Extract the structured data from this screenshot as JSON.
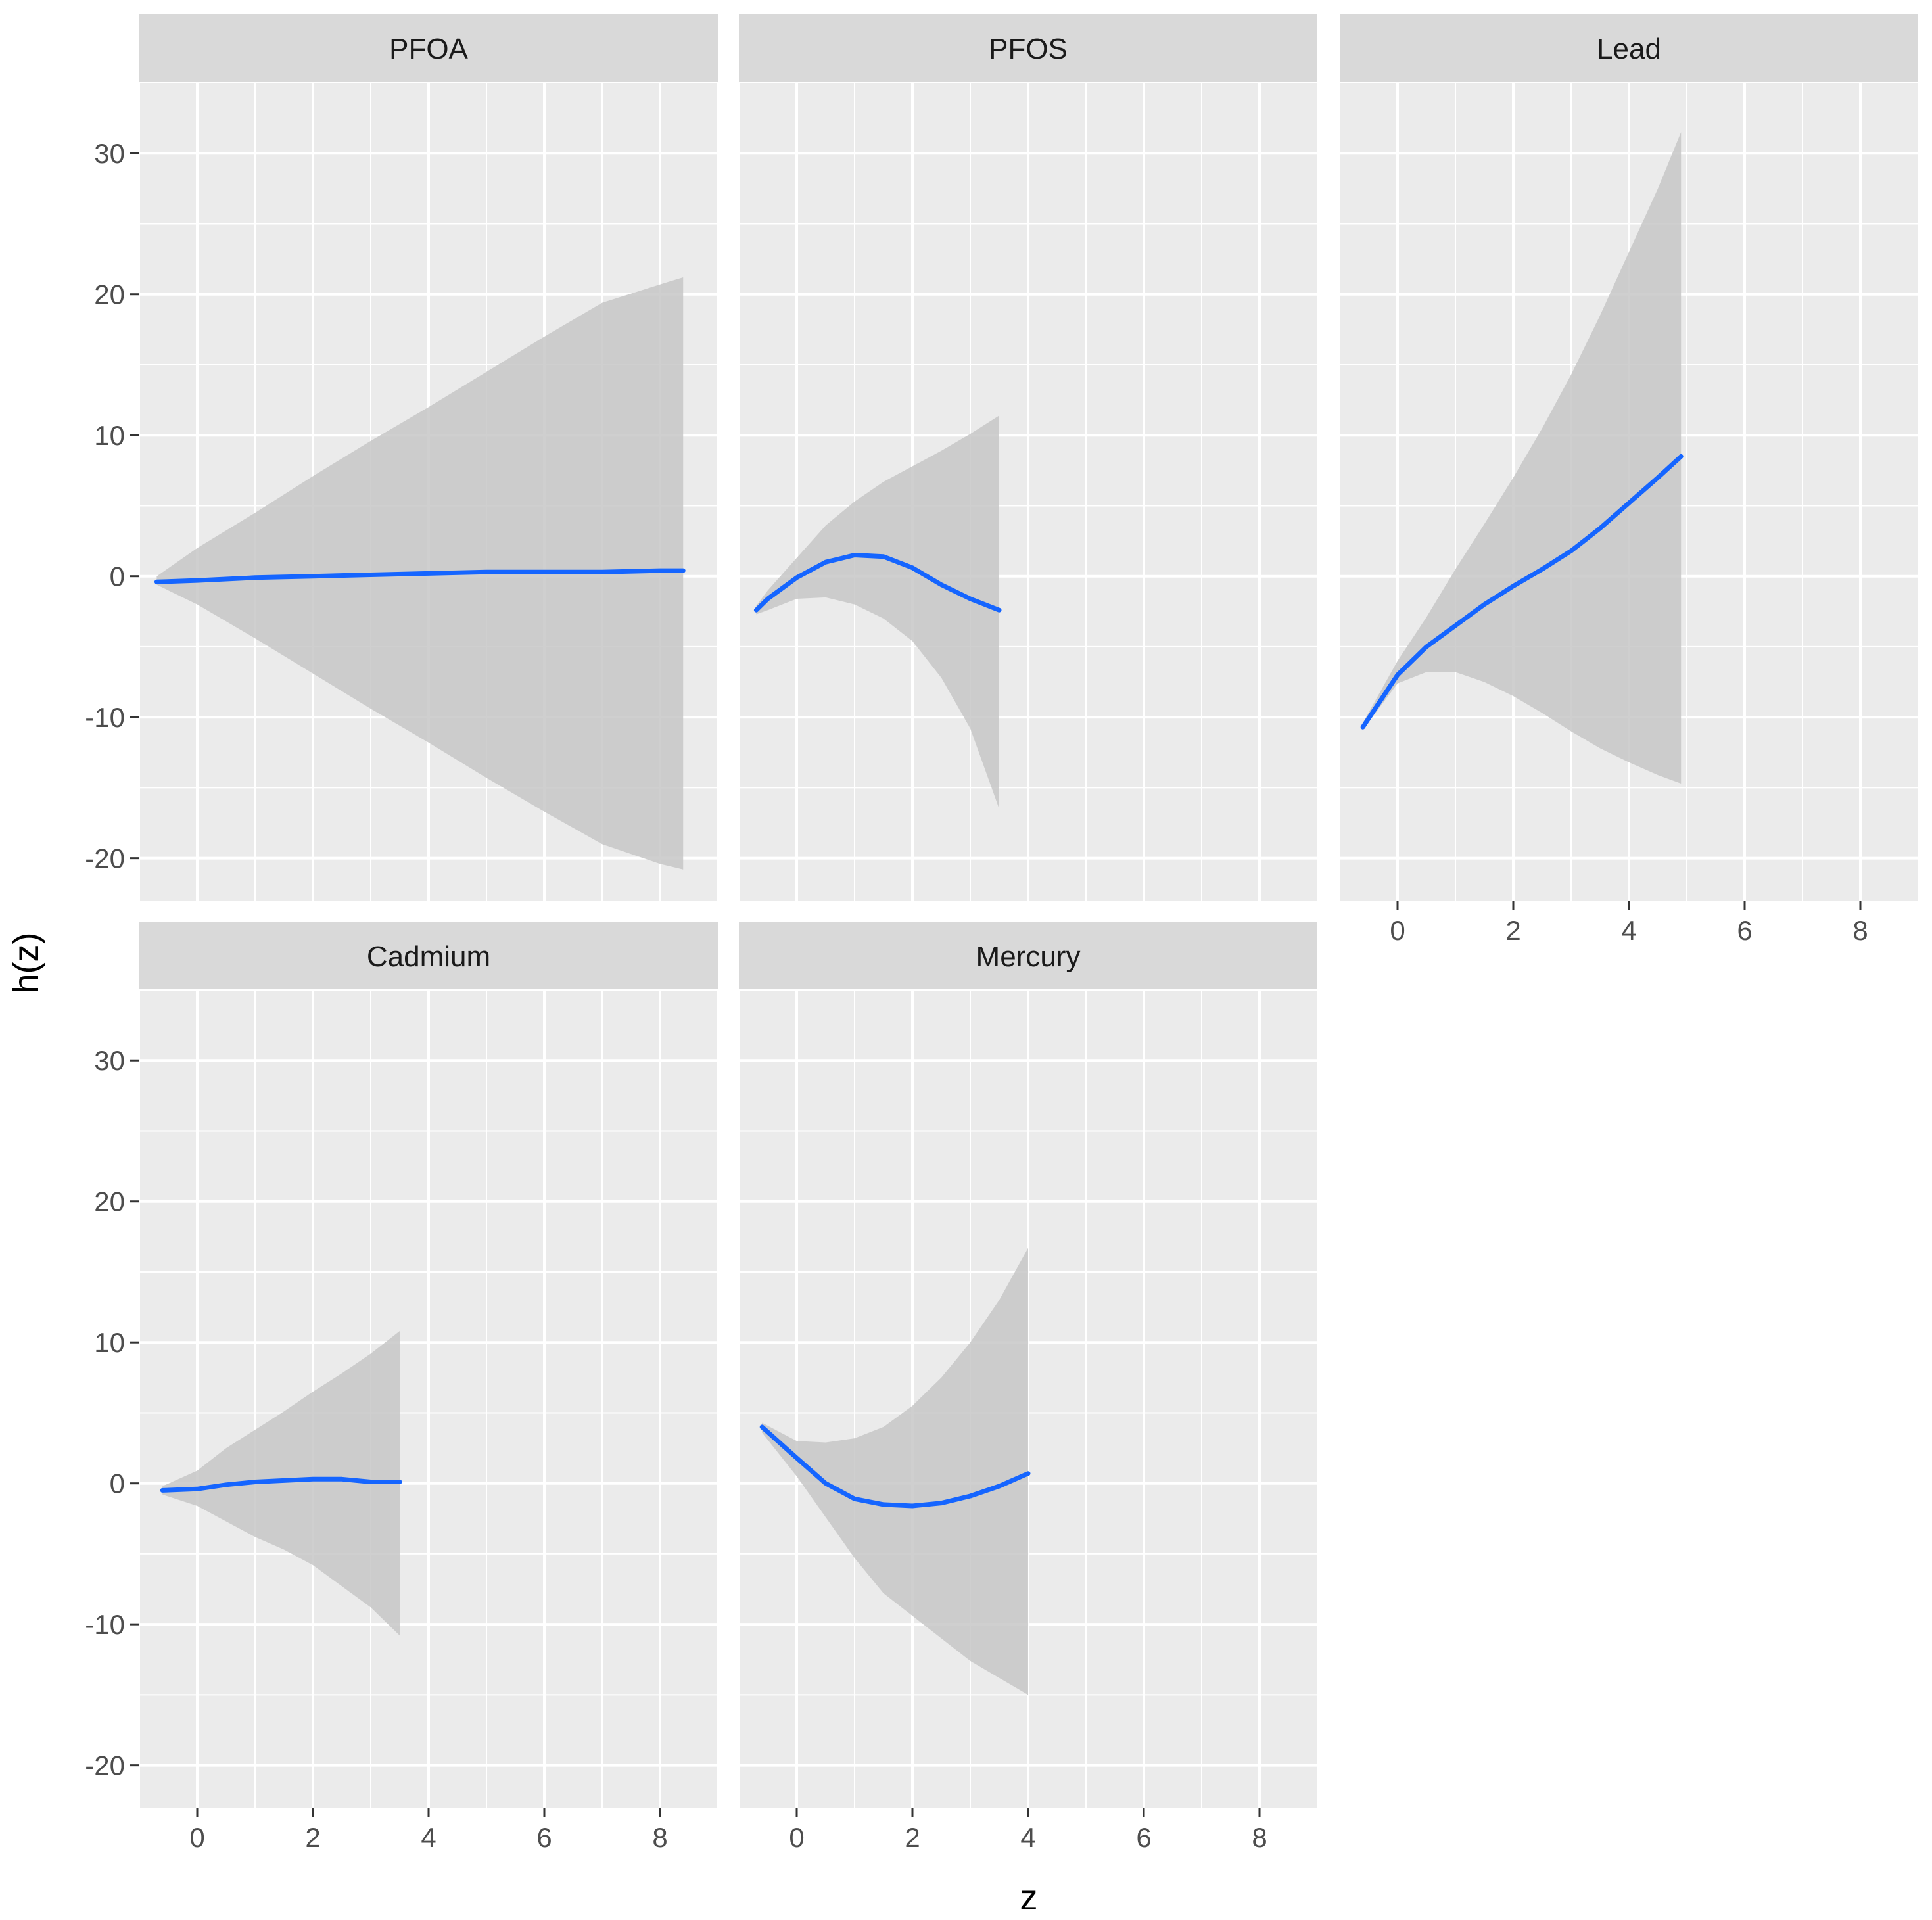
{
  "chart_data": {
    "type": "line",
    "xlabel": "z",
    "ylabel": "h(z)",
    "xlim": [
      -1,
      9
    ],
    "ylim": [
      -23,
      35
    ],
    "x_ticks": [
      0,
      2,
      4,
      6,
      8
    ],
    "y_ticks": [
      -20,
      -10,
      0,
      10,
      20,
      30
    ],
    "grid": true,
    "legend": "none",
    "colors": {
      "line": "#1565FF",
      "band": "#C7C7C7",
      "panel_bg": "#EBEBEB",
      "strip_bg": "#D9D9D9",
      "grid": "#FFFFFF"
    },
    "panels": [
      {
        "name": "PFOA",
        "x": [
          -0.7,
          0,
          1,
          2,
          3,
          4,
          5,
          6,
          7,
          8,
          8.4
        ],
        "y": [
          -0.4,
          -0.3,
          -0.1,
          0.0,
          0.1,
          0.2,
          0.3,
          0.3,
          0.3,
          0.4,
          0.4
        ],
        "lower": [
          -0.6,
          -2.0,
          -4.4,
          -6.9,
          -9.4,
          -11.8,
          -14.3,
          -16.7,
          -19.0,
          -20.4,
          -20.8
        ],
        "upper": [
          0.0,
          2.0,
          4.5,
          7.1,
          9.6,
          12.0,
          14.5,
          17.0,
          19.4,
          20.7,
          21.2
        ]
      },
      {
        "name": "PFOS",
        "x": [
          -0.7,
          -0.5,
          0,
          0.5,
          1,
          1.5,
          2,
          2.5,
          3,
          3.5
        ],
        "y": [
          -2.4,
          -1.6,
          -0.1,
          1.0,
          1.5,
          1.4,
          0.6,
          -0.6,
          -1.6,
          -2.4
        ],
        "lower": [
          -2.7,
          -2.4,
          -1.6,
          -1.5,
          -2.0,
          -3.0,
          -4.6,
          -7.2,
          -10.8,
          -16.5
        ],
        "upper": [
          -2.1,
          -1.0,
          1.3,
          3.6,
          5.3,
          6.7,
          7.8,
          8.9,
          10.1,
          11.4
        ]
      },
      {
        "name": "Lead",
        "x": [
          -0.6,
          0,
          0.5,
          1,
          1.5,
          2,
          2.5,
          3,
          3.5,
          4,
          4.5,
          4.9
        ],
        "y": [
          -10.7,
          -7.0,
          -5.0,
          -3.5,
          -2.0,
          -0.7,
          0.5,
          1.8,
          3.4,
          5.2,
          7.0,
          8.5
        ],
        "lower": [
          -10.9,
          -7.6,
          -6.8,
          -6.8,
          -7.5,
          -8.5,
          -9.7,
          -11.0,
          -12.2,
          -13.2,
          -14.1,
          -14.7
        ],
        "upper": [
          -10.4,
          -6.0,
          -2.9,
          0.5,
          3.7,
          7.0,
          10.5,
          14.3,
          18.5,
          23.0,
          27.5,
          31.5
        ]
      },
      {
        "name": "Cadmium",
        "x": [
          -0.6,
          0,
          0.5,
          1,
          1.5,
          2,
          2.5,
          3,
          3.5
        ],
        "y": [
          -0.5,
          -0.4,
          -0.1,
          0.1,
          0.2,
          0.3,
          0.3,
          0.1,
          0.1
        ],
        "lower": [
          -0.8,
          -1.6,
          -2.7,
          -3.8,
          -4.7,
          -5.8,
          -7.3,
          -8.8,
          -10.8
        ],
        "upper": [
          -0.2,
          0.9,
          2.5,
          3.8,
          5.1,
          6.5,
          7.8,
          9.2,
          10.8
        ]
      },
      {
        "name": "Mercury",
        "x": [
          -0.6,
          0,
          0.5,
          1,
          1.5,
          2,
          2.5,
          3,
          3.5,
          4
        ],
        "y": [
          4.0,
          1.8,
          0.0,
          -1.1,
          -1.5,
          -1.6,
          -1.4,
          -0.9,
          -0.2,
          0.7
        ],
        "lower": [
          3.6,
          0.5,
          -2.4,
          -5.3,
          -7.8,
          -9.4,
          -11.0,
          -12.6,
          -13.8,
          -15.0
        ],
        "upper": [
          4.3,
          3.0,
          2.9,
          3.2,
          4.0,
          5.5,
          7.5,
          10.0,
          13.0,
          16.7
        ]
      }
    ]
  }
}
